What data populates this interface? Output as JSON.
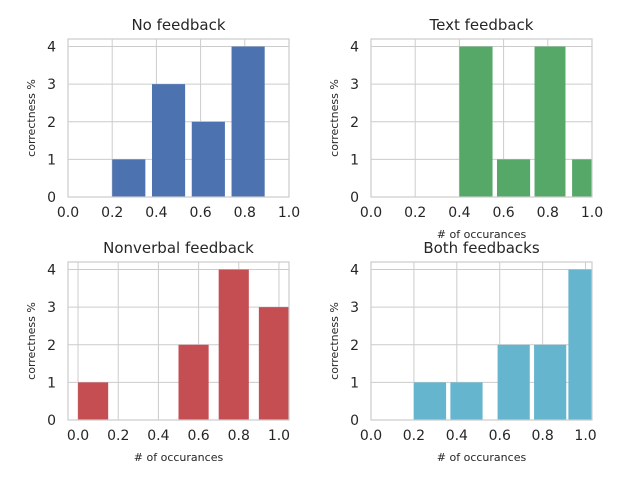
{
  "chart_data": [
    {
      "type": "bar",
      "title": "No feedback",
      "xlabel": "",
      "ylabel": "correctness %",
      "xlim": [
        0.0,
        1.0
      ],
      "ylim": [
        0,
        4.2
      ],
      "xticks": [
        "0.0",
        "0.2",
        "0.4",
        "0.6",
        "0.8",
        "1.0"
      ],
      "yticks": [
        "0",
        "1",
        "2",
        "3",
        "4"
      ],
      "grid": true,
      "color": "#4c72b0",
      "bars": [
        {
          "x0": 0.2,
          "x1": 0.35,
          "value": 1
        },
        {
          "x0": 0.38,
          "x1": 0.53,
          "value": 3
        },
        {
          "x0": 0.56,
          "x1": 0.71,
          "value": 2
        },
        {
          "x0": 0.74,
          "x1": 0.89,
          "value": 4
        }
      ]
    },
    {
      "type": "bar",
      "title": "Text feedback",
      "xlabel": "# of occurances",
      "ylabel": "correctness %",
      "xlim": [
        0.0,
        1.0
      ],
      "ylim": [
        0,
        4.2
      ],
      "xticks": [
        "0.0",
        "0.2",
        "0.4",
        "0.6",
        "0.8",
        "1.0"
      ],
      "yticks": [
        "0",
        "1",
        "2",
        "3",
        "4"
      ],
      "grid": true,
      "color": "#55a868",
      "bars": [
        {
          "x0": 0.4,
          "x1": 0.55,
          "value": 4
        },
        {
          "x0": 0.57,
          "x1": 0.72,
          "value": 1
        },
        {
          "x0": 0.74,
          "x1": 0.88,
          "value": 4
        },
        {
          "x0": 0.91,
          "x1": 1.0,
          "value": 1
        }
      ]
    },
    {
      "type": "bar",
      "title": "Nonverbal feedback",
      "xlabel": "# of occurances",
      "ylabel": "correctness %",
      "xlim": [
        -0.05,
        1.05
      ],
      "ylim": [
        0,
        4.2
      ],
      "xticks": [
        "0.0",
        "0.2",
        "0.4",
        "0.6",
        "0.8",
        "1.0"
      ],
      "yticks": [
        "0",
        "1",
        "2",
        "3",
        "4"
      ],
      "grid": true,
      "color": "#c44e52",
      "bars": [
        {
          "x0": 0.0,
          "x1": 0.15,
          "value": 1
        },
        {
          "x0": 0.5,
          "x1": 0.65,
          "value": 2
        },
        {
          "x0": 0.7,
          "x1": 0.85,
          "value": 4
        },
        {
          "x0": 0.9,
          "x1": 1.05,
          "value": 3
        }
      ]
    },
    {
      "type": "bar",
      "title": "Both feedbacks",
      "xlabel": "# of occurances",
      "ylabel": "correctness %",
      "xlim": [
        0.0,
        1.03
      ],
      "ylim": [
        0,
        4.2
      ],
      "xticks": [
        "0.0",
        "0.2",
        "0.4",
        "0.6",
        "0.8",
        "1.0"
      ],
      "yticks": [
        "0",
        "1",
        "2",
        "3",
        "4"
      ],
      "grid": true,
      "color": "#64b5cd",
      "bars": [
        {
          "x0": 0.2,
          "x1": 0.35,
          "value": 1
        },
        {
          "x0": 0.37,
          "x1": 0.52,
          "value": 1
        },
        {
          "x0": 0.59,
          "x1": 0.74,
          "value": 2
        },
        {
          "x0": 0.76,
          "x1": 0.91,
          "value": 2
        },
        {
          "x0": 0.92,
          "x1": 1.03,
          "value": 4
        }
      ]
    }
  ]
}
